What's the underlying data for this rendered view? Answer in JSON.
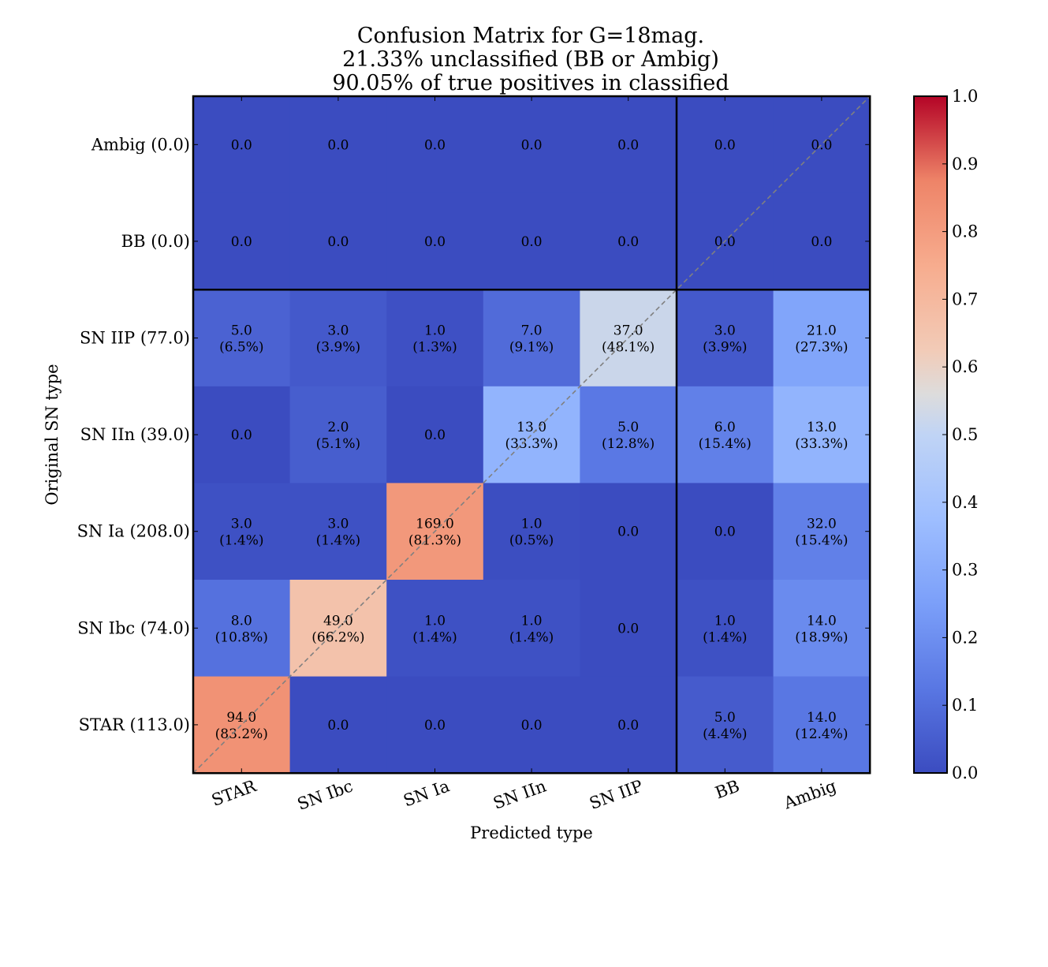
{
  "chart_data": {
    "type": "heatmap",
    "title_lines": [
      "Confusion Matrix for G=18mag.",
      "21.33% unclassified (BB or Ambig)",
      "90.05% of true positives in classified"
    ],
    "xlabel": "Predicted type",
    "ylabel": "Original SN type",
    "x_categories": [
      "STAR",
      "SN Ibc",
      "SN Ia",
      "SN IIn",
      "SN IIP",
      "BB",
      "Ambig"
    ],
    "y_categories": [
      "Ambig (0.0)",
      "BB (0.0)",
      "SN IIP (77.0)",
      "SN IIn (39.0)",
      "SN Ia (208.0)",
      "SN Ibc (74.0)",
      "STAR (113.0)"
    ],
    "fractions": [
      [
        0,
        0,
        0,
        0,
        0,
        0,
        0
      ],
      [
        0,
        0,
        0,
        0,
        0,
        0,
        0
      ],
      [
        0.065,
        0.039,
        0.013,
        0.091,
        0.481,
        0.039,
        0.273
      ],
      [
        0,
        0.051,
        0,
        0.333,
        0.128,
        0.154,
        0.333
      ],
      [
        0.014,
        0.014,
        0.813,
        0.005,
        0,
        0,
        0.154
      ],
      [
        0.108,
        0.662,
        0.014,
        0.014,
        0,
        0.014,
        0.189
      ],
      [
        0.832,
        0,
        0,
        0,
        0,
        0.044,
        0.124
      ]
    ],
    "cell_labels": [
      [
        [
          "0.0"
        ],
        [
          "0.0"
        ],
        [
          "0.0"
        ],
        [
          "0.0"
        ],
        [
          "0.0"
        ],
        [
          "0.0"
        ],
        [
          "0.0"
        ]
      ],
      [
        [
          "0.0"
        ],
        [
          "0.0"
        ],
        [
          "0.0"
        ],
        [
          "0.0"
        ],
        [
          "0.0"
        ],
        [
          "0.0"
        ],
        [
          "0.0"
        ]
      ],
      [
        [
          "5.0",
          "(6.5%)"
        ],
        [
          "3.0",
          "(3.9%)"
        ],
        [
          "1.0",
          "(1.3%)"
        ],
        [
          "7.0",
          "(9.1%)"
        ],
        [
          "37.0",
          "(48.1%)"
        ],
        [
          "3.0",
          "(3.9%)"
        ],
        [
          "21.0",
          "(27.3%)"
        ]
      ],
      [
        [
          "0.0"
        ],
        [
          "2.0",
          "(5.1%)"
        ],
        [
          "0.0"
        ],
        [
          "13.0",
          "(33.3%)"
        ],
        [
          "5.0",
          "(12.8%)"
        ],
        [
          "6.0",
          "(15.4%)"
        ],
        [
          "13.0",
          "(33.3%)"
        ]
      ],
      [
        [
          "3.0",
          "(1.4%)"
        ],
        [
          "3.0",
          "(1.4%)"
        ],
        [
          "169.0",
          "(81.3%)"
        ],
        [
          "1.0",
          "(0.5%)"
        ],
        [
          "0.0"
        ],
        [
          "0.0"
        ],
        [
          "32.0",
          "(15.4%)"
        ]
      ],
      [
        [
          "8.0",
          "(10.8%)"
        ],
        [
          "49.0",
          "(66.2%)"
        ],
        [
          "1.0",
          "(1.4%)"
        ],
        [
          "1.0",
          "(1.4%)"
        ],
        [
          "0.0"
        ],
        [
          "1.0",
          "(1.4%)"
        ],
        [
          "14.0",
          "(18.9%)"
        ]
      ],
      [
        [
          "94.0",
          "(83.2%)"
        ],
        [
          "0.0"
        ],
        [
          "0.0"
        ],
        [
          "0.0"
        ],
        [
          "0.0"
        ],
        [
          "5.0",
          "(4.4%)"
        ],
        [
          "14.0",
          "(12.4%)"
        ]
      ]
    ],
    "colormap": "coolwarm",
    "vmin": 0.0,
    "vmax": 1.0,
    "colorbar_ticks": [
      "0.0",
      "0.1",
      "0.2",
      "0.3",
      "0.4",
      "0.5",
      "0.6",
      "0.7",
      "0.8",
      "0.9",
      "1.0"
    ],
    "separator_after_column": "SN IIP",
    "separator_after_row": "BB (0.0)",
    "diagonal_line_color": "#808080"
  }
}
